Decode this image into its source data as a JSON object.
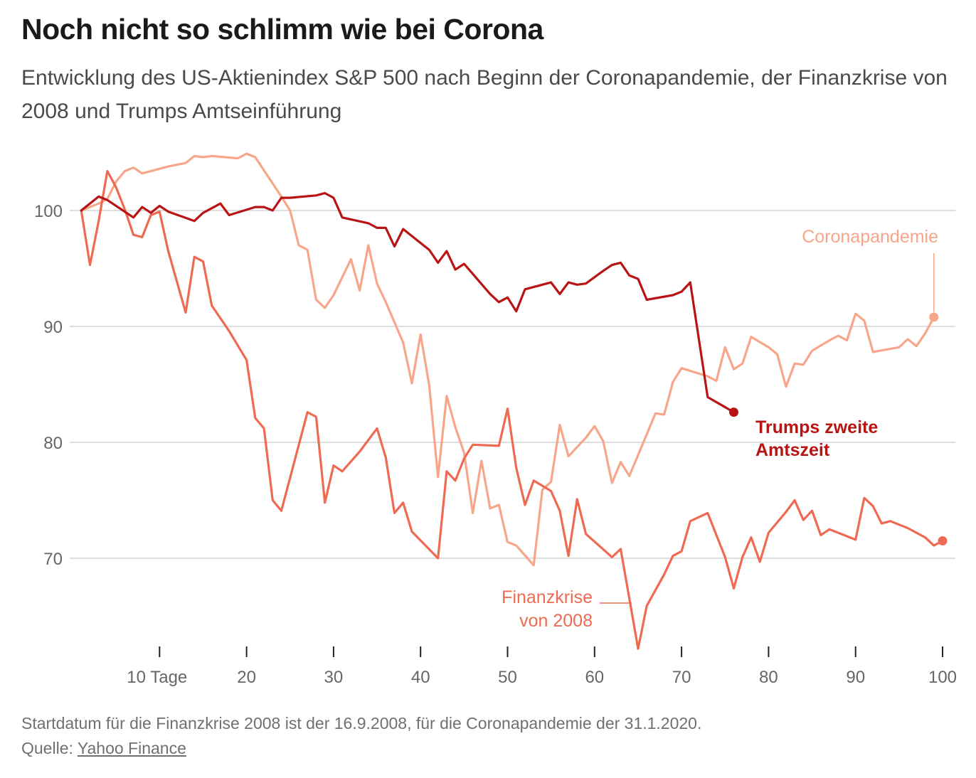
{
  "title": "Noch nicht so schlimm wie bei Corona",
  "subtitle": "Entwicklung des US-Aktienindex S&P 500 nach Beginn der Coronapandemie, der Finanzkrise von 2008 und Trumps Amtseinführung",
  "footer": {
    "note": "Startdatum für die Finanzkrise 2008 ist der 16.9.2008, für die Coronapandemie der 31.1.2020.",
    "source_label": "Quelle:",
    "source_link": "Yahoo Finance"
  },
  "chart_data": {
    "type": "line",
    "xlim": [
      0,
      100
    ],
    "ylim": [
      62,
      107
    ],
    "grid": true,
    "y_ticks": [
      70,
      80,
      90,
      100
    ],
    "x_ticks": [
      10,
      20,
      30,
      40,
      50,
      60,
      70,
      80,
      90,
      100
    ],
    "x_tick_labels": [
      "10 Tage",
      "20",
      "30",
      "40",
      "50",
      "60",
      "70",
      "80",
      "90",
      "100"
    ],
    "series": [
      {
        "name": "Coronapandemie",
        "color": "#f7a68a",
        "label_lines": [
          "Coronapandemie"
        ],
        "points": [
          [
            1,
            100
          ],
          [
            3,
            100.6
          ],
          [
            4,
            101
          ],
          [
            5,
            102.5
          ],
          [
            6,
            103.4
          ],
          [
            7,
            103.7
          ],
          [
            8,
            103.2
          ],
          [
            9,
            103.4
          ],
          [
            11,
            103.8
          ],
          [
            13,
            104.1
          ],
          [
            14,
            104.7
          ],
          [
            15,
            104.6
          ],
          [
            16,
            104.7
          ],
          [
            19,
            104.5
          ],
          [
            20,
            104.9
          ],
          [
            21,
            104.6
          ],
          [
            24,
            101.2
          ],
          [
            25,
            100
          ],
          [
            26,
            97
          ],
          [
            27,
            96.6
          ],
          [
            28,
            92.3
          ],
          [
            29,
            91.6
          ],
          [
            30,
            92.7
          ],
          [
            32,
            95.8
          ],
          [
            33,
            93.1
          ],
          [
            34,
            97
          ],
          [
            35,
            93.7
          ],
          [
            36,
            92.1
          ],
          [
            38,
            88.6
          ],
          [
            39,
            85.1
          ],
          [
            40,
            89.3
          ],
          [
            41,
            84.9
          ],
          [
            42,
            77
          ],
          [
            43,
            84
          ],
          [
            44,
            81.3
          ],
          [
            45,
            79.1
          ],
          [
            46,
            73.9
          ],
          [
            47,
            78.4
          ],
          [
            48,
            74.3
          ],
          [
            49,
            74.6
          ],
          [
            50,
            71.4
          ],
          [
            51,
            71.1
          ],
          [
            53,
            69.4
          ],
          [
            54,
            75.9
          ],
          [
            55,
            76.6
          ],
          [
            56,
            81.5
          ],
          [
            57,
            78.8
          ],
          [
            59,
            80.4
          ],
          [
            60,
            81.4
          ],
          [
            61,
            80.1
          ],
          [
            62,
            76.5
          ],
          [
            63,
            78.3
          ],
          [
            64,
            77.1
          ],
          [
            67,
            82.5
          ],
          [
            68,
            82.4
          ],
          [
            69,
            85.2
          ],
          [
            70,
            86.4
          ],
          [
            73,
            85.7
          ],
          [
            74,
            85.3
          ],
          [
            75,
            88.2
          ],
          [
            76,
            86.3
          ],
          [
            77,
            86.8
          ],
          [
            78,
            89.1
          ],
          [
            80,
            88.2
          ],
          [
            81,
            87.6
          ],
          [
            82,
            84.8
          ],
          [
            83,
            86.8
          ],
          [
            84,
            86.7
          ],
          [
            85,
            87.9
          ],
          [
            87,
            88.8
          ],
          [
            88,
            89.2
          ],
          [
            89,
            88.8
          ],
          [
            90,
            91.1
          ],
          [
            91,
            90.5
          ],
          [
            92,
            87.8
          ],
          [
            95,
            88.2
          ],
          [
            96,
            88.9
          ],
          [
            97,
            88.3
          ],
          [
            98,
            89.4
          ],
          [
            99,
            90.8
          ]
        ],
        "end_point": [
          99,
          90.8
        ]
      },
      {
        "name": "Finanzkrise von 2008",
        "color": "#ee6a52",
        "label_lines": [
          "Finanzkrise",
          "von 2008"
        ],
        "points": [
          [
            1,
            100
          ],
          [
            2,
            95.3
          ],
          [
            3,
            99.1
          ],
          [
            4,
            103.4
          ],
          [
            5,
            102
          ],
          [
            6,
            100.1
          ],
          [
            7,
            97.9
          ],
          [
            8,
            97.7
          ],
          [
            9,
            99.6
          ],
          [
            10,
            99.9
          ],
          [
            11,
            96.5
          ],
          [
            13,
            91.2
          ],
          [
            14,
            96
          ],
          [
            15,
            95.6
          ],
          [
            16,
            91.8
          ],
          [
            18,
            89.6
          ],
          [
            20,
            87.1
          ],
          [
            21,
            82.1
          ],
          [
            22,
            81.2
          ],
          [
            23,
            75
          ],
          [
            24,
            74.1
          ],
          [
            27,
            82.6
          ],
          [
            28,
            82.2
          ],
          [
            29,
            74.8
          ],
          [
            30,
            78
          ],
          [
            31,
            77.5
          ],
          [
            33,
            79.2
          ],
          [
            35,
            81.2
          ],
          [
            36,
            78.7
          ],
          [
            37,
            73.9
          ],
          [
            38,
            74.8
          ],
          [
            39,
            72.3
          ],
          [
            42,
            70
          ],
          [
            43,
            77.5
          ],
          [
            44,
            76.7
          ],
          [
            45,
            78.6
          ],
          [
            46,
            79.8
          ],
          [
            49,
            79.7
          ],
          [
            50,
            82.9
          ],
          [
            51,
            77.8
          ],
          [
            52,
            74.6
          ],
          [
            53,
            76.7
          ],
          [
            55,
            75.8
          ],
          [
            56,
            74.1
          ],
          [
            57,
            70.2
          ],
          [
            58,
            75.1
          ],
          [
            59,
            72.1
          ],
          [
            62,
            70.1
          ],
          [
            63,
            70.8
          ],
          [
            65,
            62.2
          ],
          [
            66,
            65.9
          ],
          [
            68,
            68.6
          ],
          [
            69,
            70.2
          ],
          [
            70,
            70.6
          ],
          [
            71,
            73.2
          ],
          [
            73,
            73.9
          ],
          [
            75,
            70.1
          ],
          [
            76,
            67.4
          ],
          [
            77,
            70.1
          ],
          [
            78,
            71.8
          ],
          [
            79,
            69.7
          ],
          [
            80,
            72.2
          ],
          [
            82,
            74
          ],
          [
            83,
            75
          ],
          [
            84,
            73.3
          ],
          [
            85,
            74.1
          ],
          [
            86,
            72
          ],
          [
            87,
            72.5
          ],
          [
            90,
            71.6
          ],
          [
            91,
            75.2
          ],
          [
            92,
            74.5
          ],
          [
            93,
            73
          ],
          [
            94,
            73.2
          ],
          [
            96,
            72.6
          ],
          [
            98,
            71.8
          ],
          [
            99,
            71.1
          ],
          [
            100,
            71.5
          ]
        ],
        "end_point": [
          100,
          71.5
        ]
      },
      {
        "name": "Trumps zweite Amtszeit",
        "color": "#b81414",
        "label_lines": [
          "Trumps zweite",
          "Amtszeit"
        ],
        "points": [
          [
            1,
            100
          ],
          [
            3,
            101.2
          ],
          [
            4,
            100.9
          ],
          [
            7,
            99.4
          ],
          [
            8,
            100.3
          ],
          [
            9,
            99.8
          ],
          [
            10,
            100.4
          ],
          [
            11,
            99.9
          ],
          [
            14,
            99.1
          ],
          [
            15,
            99.8
          ],
          [
            17,
            100.6
          ],
          [
            18,
            99.6
          ],
          [
            21,
            100.3
          ],
          [
            22,
            100.3
          ],
          [
            23,
            100
          ],
          [
            24,
            101.1
          ],
          [
            25,
            101.1
          ],
          [
            28,
            101.3
          ],
          [
            29,
            101.5
          ],
          [
            30,
            101.1
          ],
          [
            31,
            99.4
          ],
          [
            34,
            98.9
          ],
          [
            35,
            98.5
          ],
          [
            36,
            98.5
          ],
          [
            37,
            96.9
          ],
          [
            38,
            98.4
          ],
          [
            41,
            96.6
          ],
          [
            42,
            95.5
          ],
          [
            43,
            96.5
          ],
          [
            44,
            94.9
          ],
          [
            45,
            95.4
          ],
          [
            48,
            92.8
          ],
          [
            49,
            92.1
          ],
          [
            50,
            92.5
          ],
          [
            51,
            91.3
          ],
          [
            52,
            93.2
          ],
          [
            55,
            93.8
          ],
          [
            56,
            92.8
          ],
          [
            57,
            93.8
          ],
          [
            58,
            93.6
          ],
          [
            59,
            93.7
          ],
          [
            61,
            94.8
          ],
          [
            62,
            95.3
          ],
          [
            63,
            95.5
          ],
          [
            64,
            94.4
          ],
          [
            65,
            94.1
          ],
          [
            66,
            92.3
          ],
          [
            69,
            92.7
          ],
          [
            70,
            93
          ],
          [
            71,
            93.8
          ],
          [
            73,
            83.9
          ],
          [
            76,
            82.6
          ]
        ],
        "end_point": [
          76,
          82.6
        ]
      }
    ]
  }
}
